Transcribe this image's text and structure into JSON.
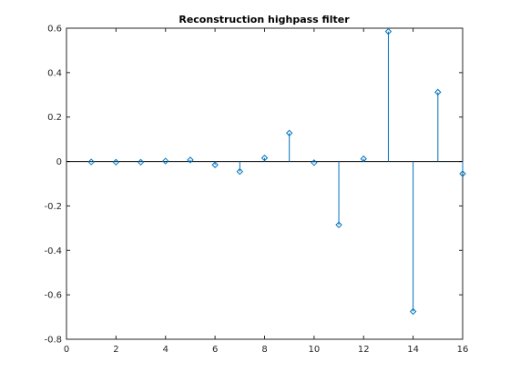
{
  "chart_data": {
    "type": "stem",
    "title": "Reconstruction highpass filter",
    "xlabel": "",
    "ylabel": "",
    "xlim": [
      0,
      16
    ],
    "ylim": [
      -0.8,
      0.6
    ],
    "x_ticks": [
      0,
      2,
      4,
      6,
      8,
      10,
      12,
      14,
      16
    ],
    "y_ticks": [
      0.6,
      0.4,
      0.2,
      0,
      -0.2,
      -0.4,
      -0.6,
      -0.8
    ],
    "x": [
      1,
      2,
      3,
      4,
      5,
      6,
      7,
      8,
      9,
      10,
      11,
      12,
      13,
      14,
      15,
      16
    ],
    "values": [
      -0.002,
      -0.003,
      -0.003,
      0.002,
      0.007,
      -0.015,
      -0.045,
      0.016,
      0.128,
      -0.005,
      -0.285,
      0.012,
      0.585,
      -0.675,
      0.312,
      -0.055
    ],
    "baseline": 0,
    "grid": false,
    "marker": "diamond",
    "color": "#0072BD"
  }
}
